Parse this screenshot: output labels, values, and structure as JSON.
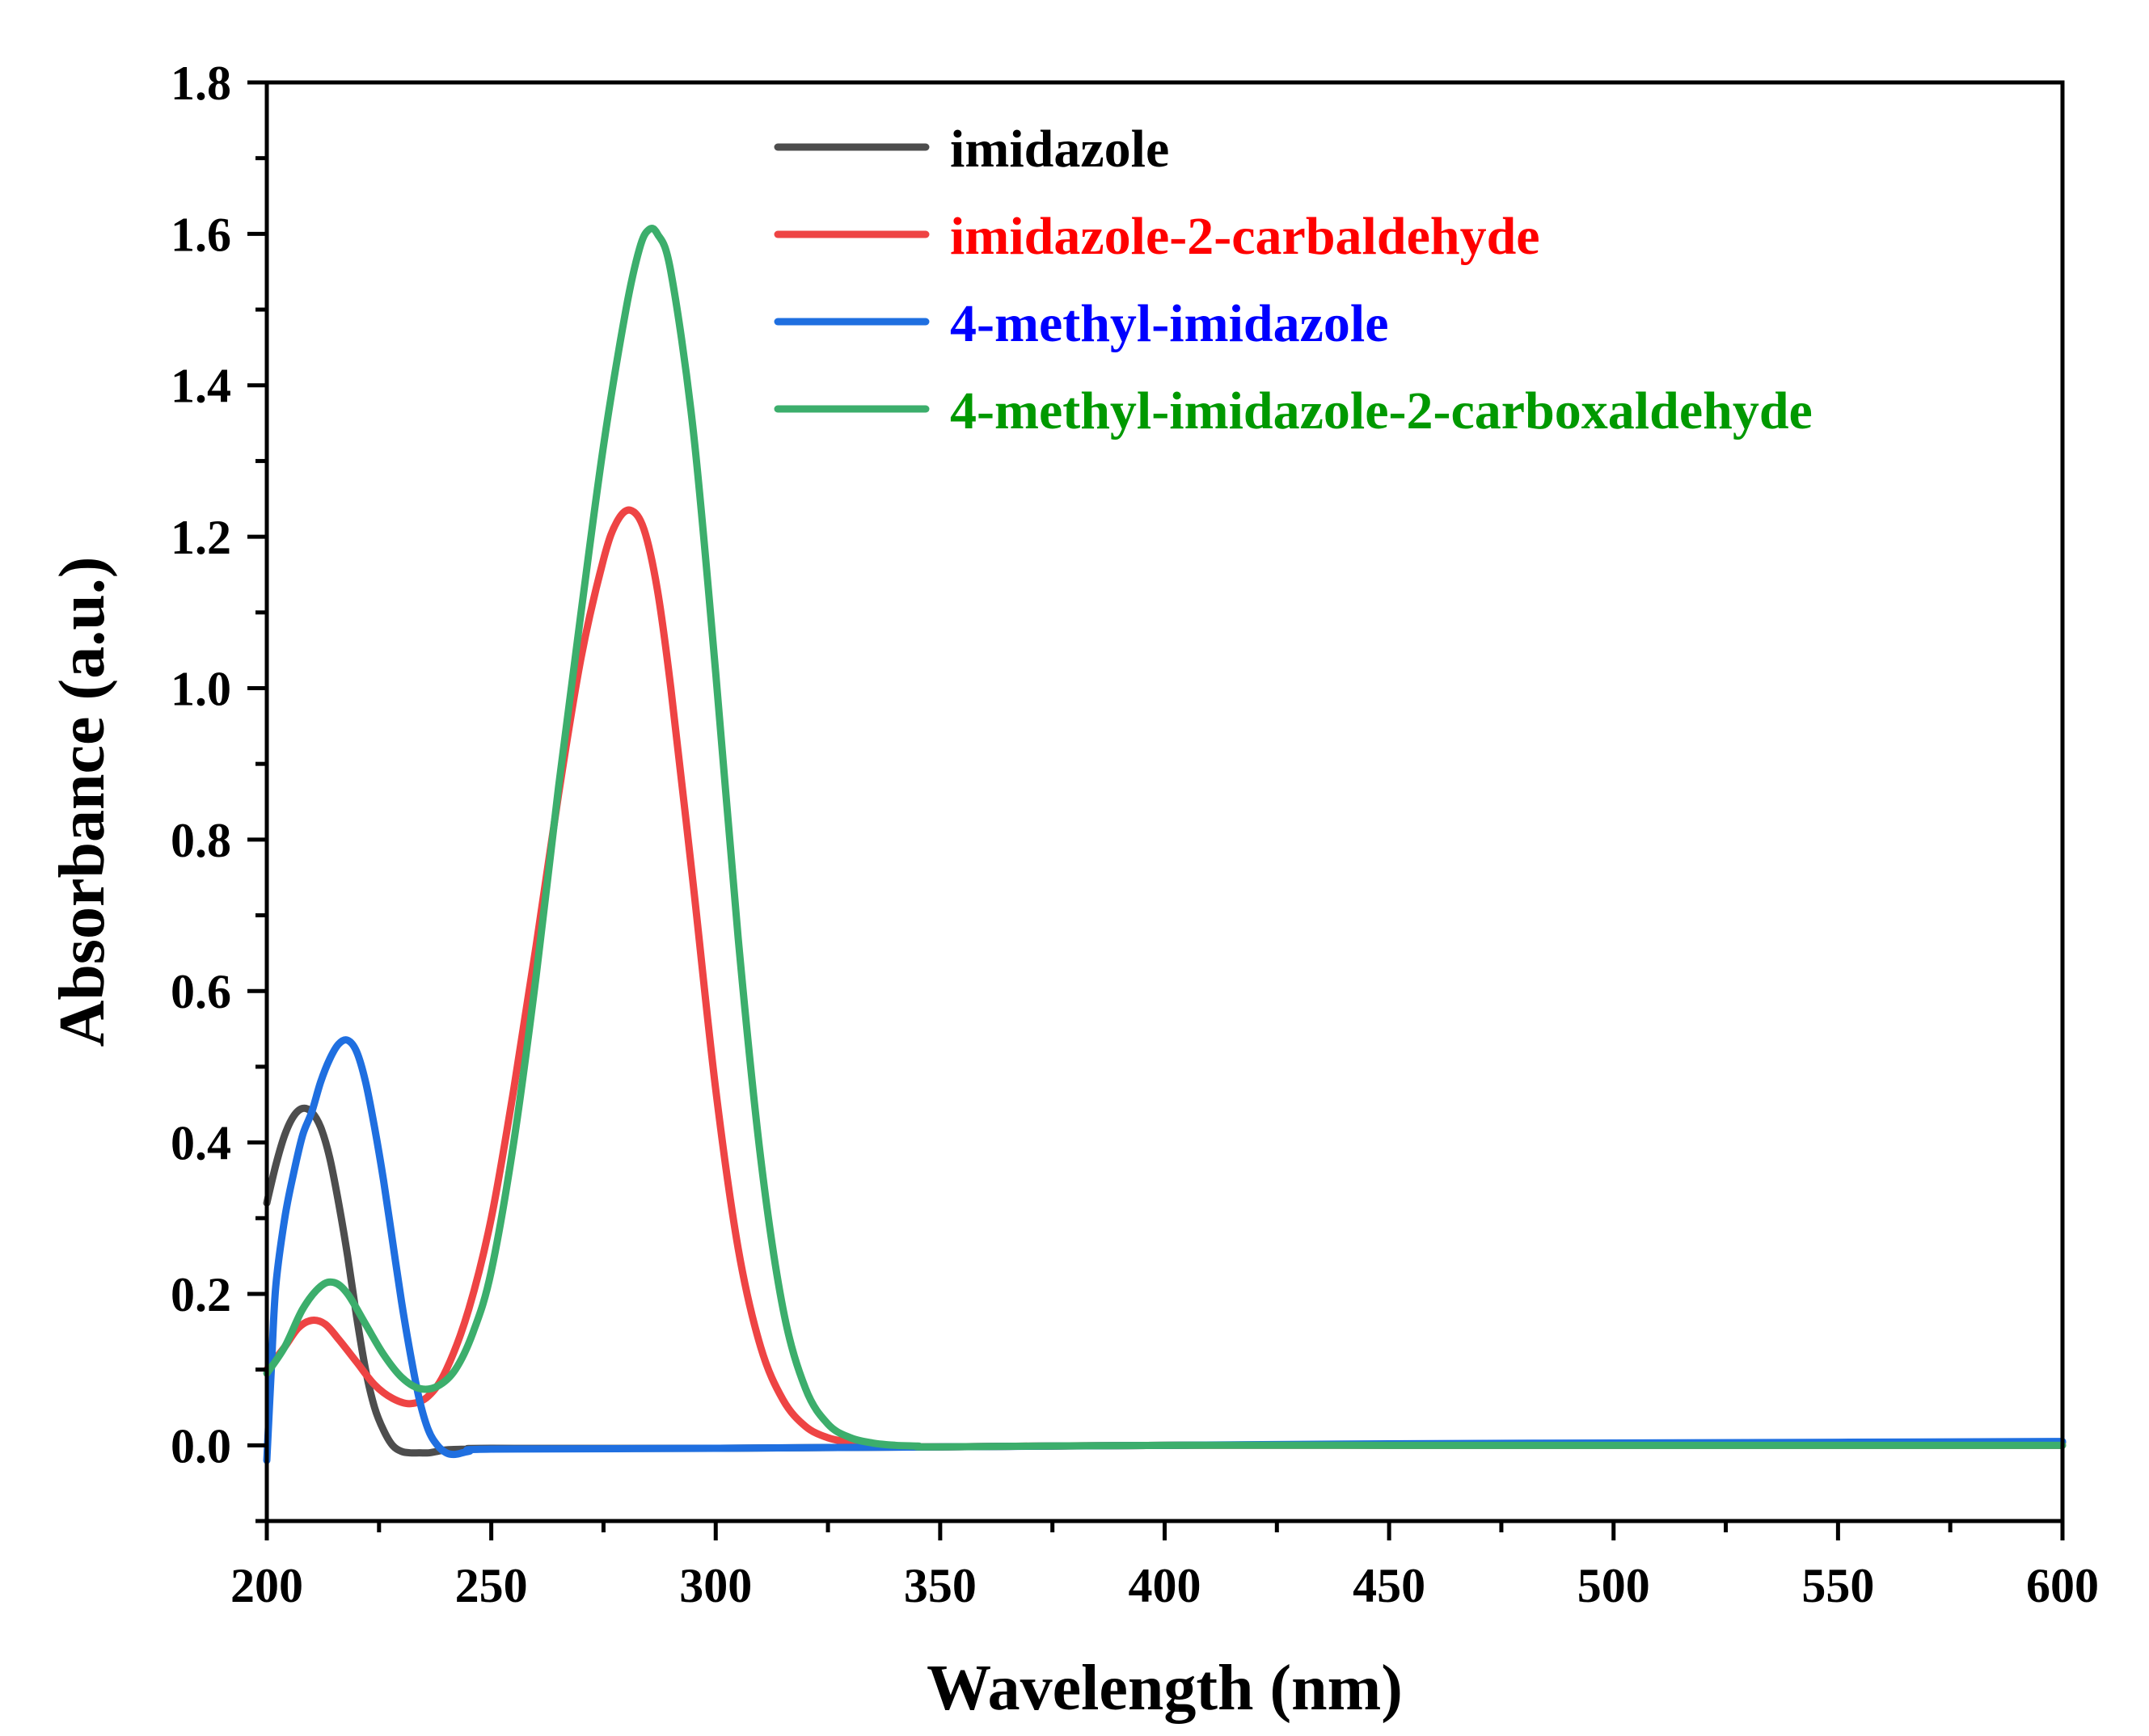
{
  "chart_data": {
    "type": "line",
    "title": "",
    "xlabel": "Wavelength (nm)",
    "ylabel": "Absorbance (a.u.)",
    "xlim": [
      200,
      600
    ],
    "ylim": [
      -0.1,
      1.8
    ],
    "xticks": [
      200,
      250,
      300,
      350,
      400,
      450,
      500,
      550,
      600
    ],
    "yticks": [
      0.0,
      0.2,
      0.4,
      0.6,
      0.8,
      1.0,
      1.2,
      1.4,
      1.6,
      1.8
    ],
    "xtick_labels": [
      "200",
      "250",
      "300",
      "350",
      "400",
      "450",
      "500",
      "550",
      "600"
    ],
    "ytick_labels": [
      "0.0",
      "0.2",
      "0.4",
      "0.6",
      "0.8",
      "1.0",
      "1.2",
      "1.4",
      "1.6",
      "1.8"
    ],
    "grid": false,
    "legend_position": "top-right",
    "series": [
      {
        "name": "imidazole",
        "color": "#4d4d4d",
        "text_color": "#000000",
        "x": [
          200,
          202,
          204,
          206,
          208,
          210,
          212,
          214,
          216,
          218,
          220,
          222,
          224,
          226,
          228,
          230,
          232,
          234,
          236,
          238,
          240,
          245,
          250,
          300,
          350,
          400,
          450,
          500,
          550,
          600
        ],
        "y": [
          0.32,
          0.37,
          0.41,
          0.435,
          0.445,
          0.44,
          0.42,
          0.38,
          0.32,
          0.25,
          0.17,
          0.1,
          0.05,
          0.02,
          0.0,
          -0.008,
          -0.01,
          -0.01,
          -0.01,
          -0.008,
          -0.006,
          -0.005,
          -0.004,
          -0.004,
          -0.002,
          0.0,
          0.001,
          0.002,
          0.003,
          0.004
        ]
      },
      {
        "name": "imidazole-2-carbaldehyde",
        "color": "#ee4444",
        "text_color": "#ff0000",
        "x": [
          200,
          204,
          207,
          210,
          213,
          216,
          220,
          224,
          228,
          232,
          236,
          240,
          245,
          250,
          255,
          260,
          265,
          270,
          275,
          278,
          281,
          284,
          287,
          290,
          295,
          300,
          305,
          310,
          315,
          320,
          325,
          330,
          335,
          340,
          350,
          400,
          450,
          500,
          550,
          600
        ],
        "y": [
          0.1,
          0.13,
          0.155,
          0.165,
          0.16,
          0.14,
          0.11,
          0.08,
          0.062,
          0.055,
          0.065,
          0.1,
          0.18,
          0.3,
          0.47,
          0.66,
          0.86,
          1.04,
          1.17,
          1.22,
          1.235,
          1.21,
          1.13,
          1.0,
          0.74,
          0.47,
          0.26,
          0.13,
          0.06,
          0.025,
          0.01,
          0.004,
          0.0,
          -0.001,
          -0.002,
          0.0,
          0.0,
          0.0,
          0.0,
          0.0
        ]
      },
      {
        "name": "4-methyl-imidazole",
        "color": "#1f6fe0",
        "text_color": "#0000ff",
        "x": [
          200,
          201,
          202,
          204,
          206,
          208,
          210,
          212,
          214,
          216,
          218,
          220,
          222,
          224,
          226,
          228,
          230,
          232,
          234,
          236,
          238,
          240,
          242,
          245,
          250,
          300,
          350,
          400,
          450,
          500,
          550,
          600
        ],
        "y": [
          -0.02,
          0.1,
          0.21,
          0.3,
          0.36,
          0.41,
          0.44,
          0.48,
          0.51,
          0.53,
          0.535,
          0.52,
          0.48,
          0.42,
          0.35,
          0.27,
          0.19,
          0.12,
          0.06,
          0.02,
          0.0,
          -0.01,
          -0.012,
          -0.008,
          -0.005,
          -0.004,
          -0.002,
          0.0,
          0.002,
          0.003,
          0.004,
          0.005
        ]
      },
      {
        "name": "4-methyl-imidazole-2-carboxaldehyde",
        "color": "#3cae6c",
        "text_color": "#009900",
        "x": [
          200,
          204,
          208,
          212,
          215,
          218,
          222,
          226,
          230,
          234,
          238,
          242,
          246,
          250,
          255,
          260,
          265,
          270,
          275,
          280,
          283,
          285,
          287,
          290,
          295,
          300,
          305,
          310,
          315,
          320,
          325,
          330,
          335,
          340,
          345,
          350,
          400,
          450,
          500,
          550,
          600
        ],
        "y": [
          0.095,
          0.13,
          0.18,
          0.21,
          0.215,
          0.2,
          0.16,
          0.12,
          0.09,
          0.075,
          0.078,
          0.1,
          0.15,
          0.23,
          0.4,
          0.62,
          0.87,
          1.1,
          1.32,
          1.5,
          1.58,
          1.605,
          1.6,
          1.55,
          1.34,
          1.02,
          0.67,
          0.38,
          0.18,
          0.075,
          0.028,
          0.01,
          0.003,
          0.0,
          -0.001,
          -0.002,
          0.0,
          0.0,
          0.0,
          0.0,
          0.0
        ]
      }
    ]
  }
}
